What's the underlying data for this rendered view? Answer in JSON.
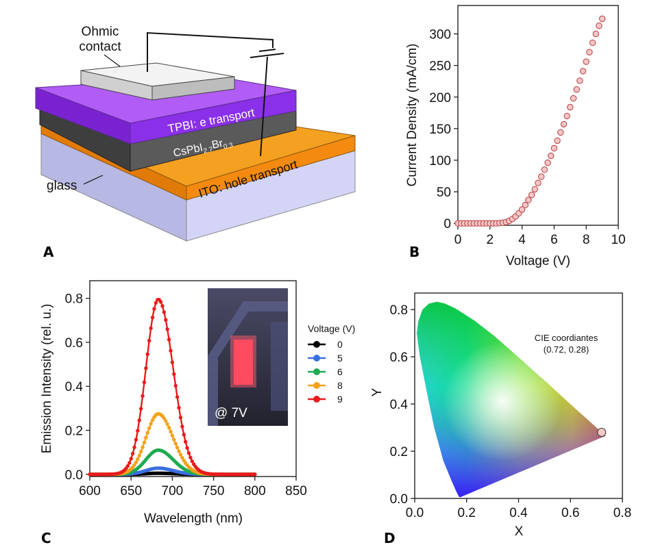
{
  "panels": {
    "a": "A",
    "b": "B",
    "c": "C",
    "d": "D"
  },
  "device": {
    "ohmic_line1": "Ohmic",
    "ohmic_line2": "contact",
    "tpbi": "TPBI: e transport",
    "perov_base": "CsPbI",
    "perov_sub1": "2.7",
    "perov_mid": "Br",
    "perov_sub2": "0.3",
    "ito": "ITO: hole transport",
    "glass": "glass"
  },
  "colors": {
    "purple": "#8a2be2",
    "dark_grey": "#555555",
    "orange": "#f29010",
    "glass": "#c9c9f0",
    "marker_fill": "#f6c6c8",
    "marker_edge": "#b43c3c"
  },
  "chart_data": [
    {
      "id": "B",
      "type": "scatter",
      "xlabel": "Voltage (V)",
      "ylabel": "Current Density (mA/cm)",
      "xlim": [
        0,
        10
      ],
      "ylim": [
        -3,
        345
      ],
      "xticks": [
        0,
        2,
        4,
        6,
        8,
        10
      ],
      "yticks": [
        0,
        50,
        100,
        150,
        200,
        250,
        300
      ],
      "grid": false,
      "x": [
        0,
        0.2,
        0.4,
        0.6,
        0.8,
        1.0,
        1.2,
        1.4,
        1.6,
        1.8,
        2.0,
        2.2,
        2.4,
        2.6,
        2.8,
        3.0,
        3.2,
        3.4,
        3.6,
        3.8,
        4.0,
        4.2,
        4.4,
        4.6,
        4.8,
        5.0,
        5.2,
        5.4,
        5.6,
        5.8,
        6.0,
        6.2,
        6.4,
        6.6,
        6.8,
        7.0,
        7.2,
        7.4,
        7.6,
        7.8,
        8.0,
        8.2,
        8.4,
        8.6,
        8.8,
        9.0
      ],
      "y": [
        0,
        0,
        0,
        0,
        0,
        0,
        0,
        0,
        0,
        0,
        0,
        0,
        0,
        0.5,
        1,
        2,
        4,
        7,
        11,
        16,
        22,
        29,
        37,
        45,
        54,
        64,
        74,
        85,
        96,
        107,
        119,
        131,
        144,
        157,
        170,
        184,
        198,
        212,
        226,
        241,
        256,
        271,
        286,
        300,
        313,
        324
      ]
    },
    {
      "id": "C",
      "type": "line",
      "xlabel": "Wavelength (nm)",
      "ylabel": "Emission Intensity (rel. u.)",
      "xlim": [
        600,
        850
      ],
      "ylim": [
        -0.01,
        0.88
      ],
      "xticks": [
        600,
        650,
        700,
        750,
        800,
        850
      ],
      "yticks": [
        0.0,
        0.2,
        0.4,
        0.6,
        0.8
      ],
      "legend_title": "Voltage (V)",
      "legend_position": "right",
      "inset_label": "@ 7V",
      "peak_nm": 683,
      "sigma_left": 15,
      "sigma_right": 18,
      "x_range": [
        600,
        800
      ],
      "series": [
        {
          "name": "0",
          "color": "#000000",
          "peak": 0.005
        },
        {
          "name": "5",
          "color": "#3a6fe0",
          "peak": 0.028
        },
        {
          "name": "6",
          "color": "#1faa50",
          "peak": 0.11
        },
        {
          "name": "8",
          "color": "#f4a21a",
          "peak": 0.275
        },
        {
          "name": "9",
          "color": "#e81c1c",
          "peak": 0.795
        }
      ]
    },
    {
      "id": "D",
      "type": "scatter",
      "xlabel": "X",
      "ylabel": "Y",
      "xlim": [
        0,
        0.8
      ],
      "ylim": [
        0,
        0.87
      ],
      "xticks": [
        0.0,
        0.2,
        0.4,
        0.6,
        0.8
      ],
      "yticks": [
        0.0,
        0.2,
        0.4,
        0.6,
        0.8
      ],
      "annotation_line1": "CIE coordiantes",
      "annotation_line2": "(0.72, 0.28)",
      "point": {
        "x": 0.72,
        "y": 0.28
      }
    }
  ]
}
